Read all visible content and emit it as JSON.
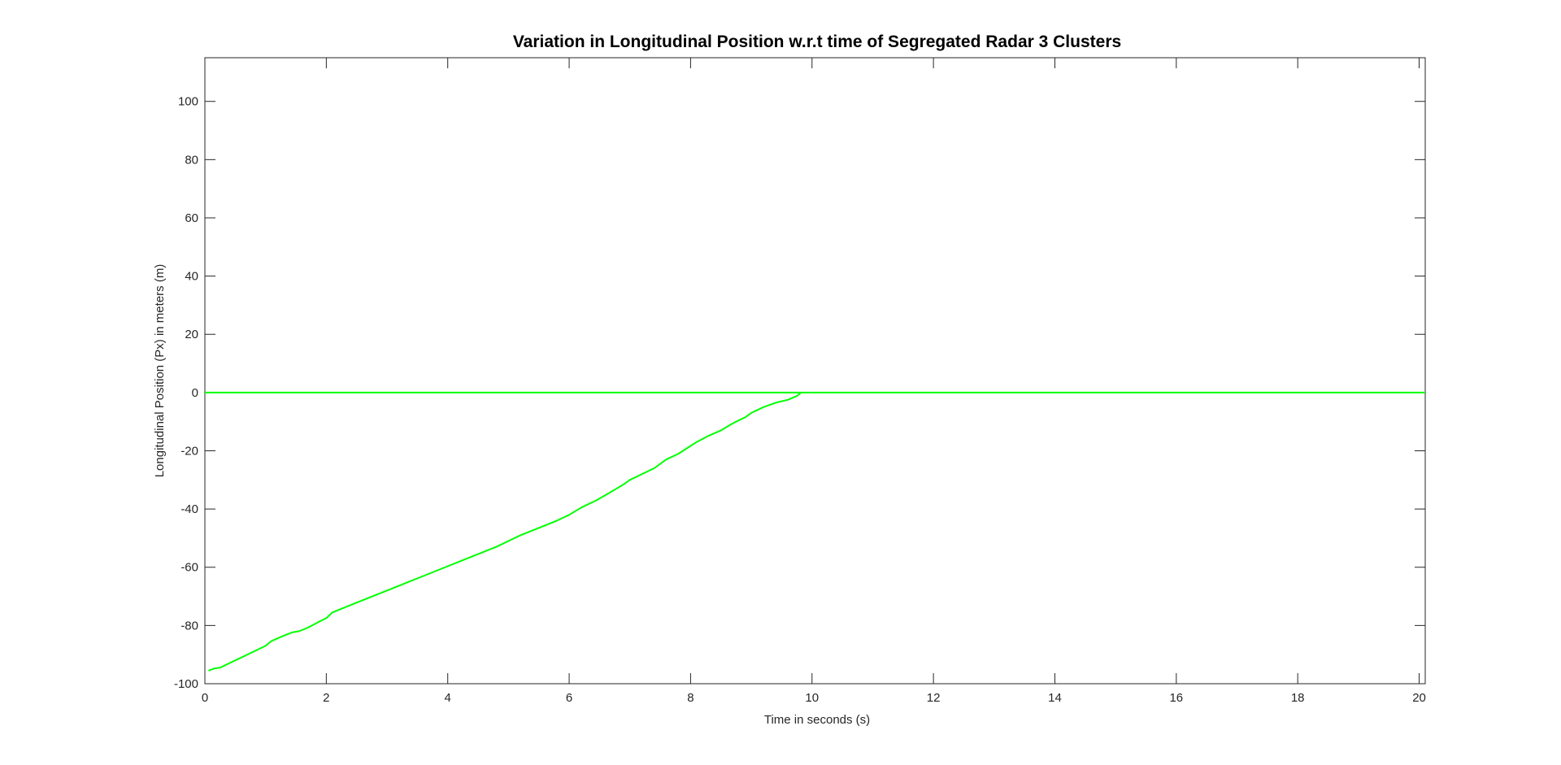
{
  "chart_data": {
    "type": "line",
    "title": "Variation in Longitudinal Position w.r.t time of Segregated Radar 3 Clusters",
    "xlabel": "Time in seconds (s)",
    "ylabel": "Longitudinal Position (Px) in meters (m)",
    "xlim": [
      0,
      20.1
    ],
    "ylim": [
      -100,
      115
    ],
    "xticks": [
      0,
      2,
      4,
      6,
      8,
      10,
      12,
      14,
      16,
      18,
      20
    ],
    "yticks": [
      -100,
      -80,
      -60,
      -40,
      -20,
      0,
      20,
      40,
      60,
      80,
      100
    ],
    "grid": false,
    "line_color": "#00ff00",
    "series": [
      {
        "x": [
          0,
          20.1
        ],
        "y": [
          0,
          0
        ]
      },
      {
        "x": [
          0.06,
          0.15,
          0.25,
          0.4,
          0.6,
          0.8,
          1.0,
          1.1,
          1.3,
          1.45,
          1.55,
          1.7,
          1.9,
          2.0,
          2.1,
          2.4,
          2.7,
          3.0,
          3.3,
          3.6,
          3.9,
          4.2,
          4.5,
          4.8,
          5.0,
          5.2,
          5.5,
          5.8,
          6.0,
          6.2,
          6.45,
          6.7,
          6.9,
          7.0,
          7.2,
          7.4,
          7.6,
          7.8,
          7.95,
          8.1,
          8.3,
          8.5,
          8.7,
          8.9,
          9.0,
          9.2,
          9.4,
          9.6,
          9.75,
          9.82
        ],
        "y": [
          -95.5,
          -94.8,
          -94.5,
          -93.0,
          -91.0,
          -89.0,
          -87.0,
          -85.3,
          -83.5,
          -82.3,
          -82.0,
          -80.7,
          -78.5,
          -77.5,
          -75.5,
          -73.0,
          -70.5,
          -68.0,
          -65.5,
          -63.0,
          -60.5,
          -58.0,
          -55.5,
          -53.0,
          -51.0,
          -49.0,
          -46.5,
          -44.0,
          -42.0,
          -39.5,
          -37.0,
          -34.0,
          -31.5,
          -30.0,
          -28.0,
          -26.0,
          -23.0,
          -21.0,
          -19.0,
          -17.0,
          -14.8,
          -13.0,
          -10.5,
          -8.5,
          -7.0,
          -5.0,
          -3.5,
          -2.5,
          -1.2,
          0
        ]
      }
    ]
  }
}
